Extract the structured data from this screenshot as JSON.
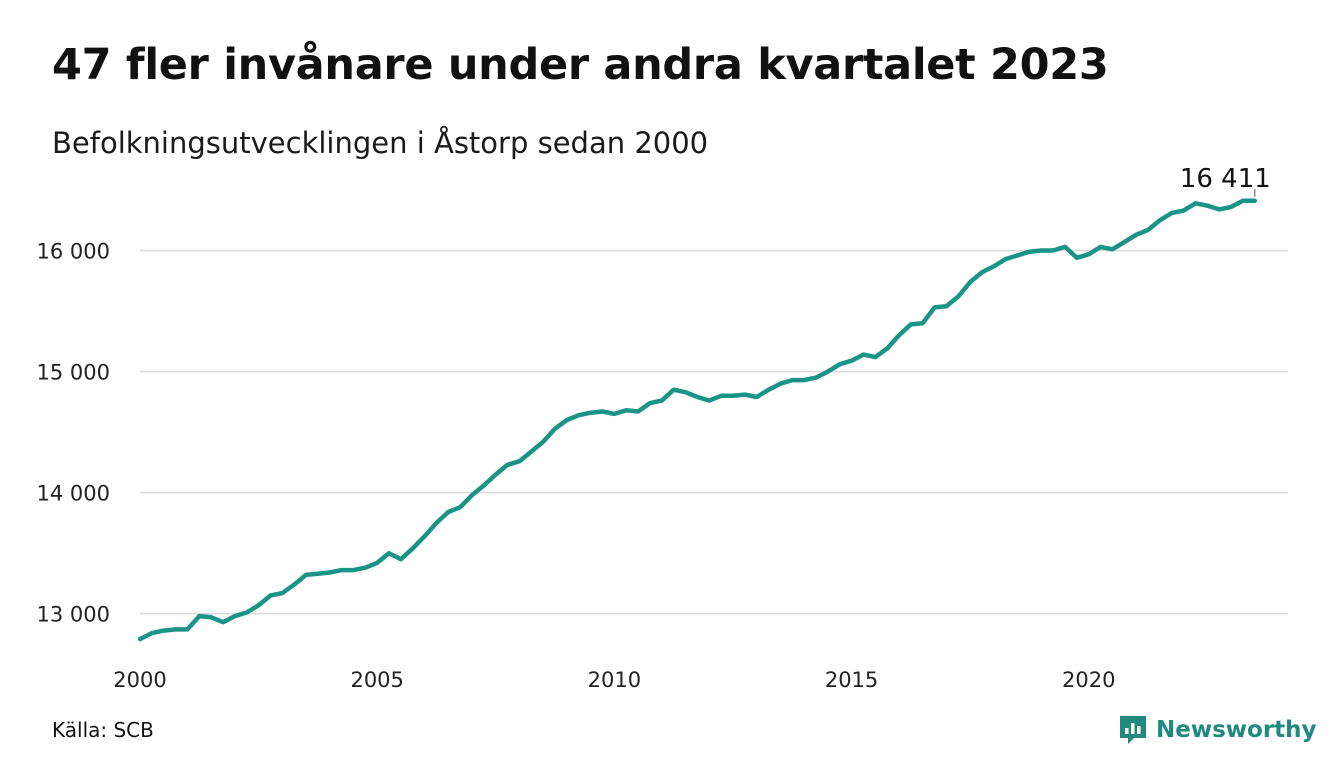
{
  "header": {
    "title": "47 fler invånare under andra kvartalet 2023",
    "subtitle": "Befolkningsutvecklingen i Åstorp sedan 2000"
  },
  "footer": {
    "source": "Källa: SCB",
    "brand": "Newsworthy",
    "brand_icon": "newsworthy-logo-icon",
    "brand_color": "#1f8a7d"
  },
  "chart_data": {
    "type": "line",
    "title": "47 fler invånare under andra kvartalet 2023",
    "subtitle": "Befolkningsutvecklingen i Åstorp sedan 2000",
    "x_unit": "year (quarterly observations)",
    "xlim": [
      2000,
      2024.2
    ],
    "ylim": [
      12700,
      16500
    ],
    "x_ticks": [
      2000,
      2005,
      2010,
      2015,
      2020
    ],
    "x_tick_labels": [
      "2000",
      "2005",
      "2010",
      "2015",
      "2020"
    ],
    "y_ticks": [
      13000,
      14000,
      15000,
      16000
    ],
    "y_tick_labels": [
      "13 000",
      "14 000",
      "15 000",
      "16 000"
    ],
    "grid": "horizontal",
    "line_color": "#1a9486",
    "end_label": "16 411",
    "series": [
      {
        "x": [
          2000.0,
          2000.25,
          2000.5,
          2000.75,
          2001.0,
          2001.25,
          2001.5,
          2001.75,
          2002.0,
          2002.25,
          2002.5,
          2002.75,
          2003.0,
          2003.25,
          2003.5,
          2003.75,
          2004.0,
          2004.25,
          2004.5,
          2004.75,
          2005.0,
          2005.25,
          2005.5,
          2005.75,
          2006.0,
          2006.25,
          2006.5,
          2006.75,
          2007.0,
          2007.25,
          2007.5,
          2007.75,
          2008.0,
          2008.25,
          2008.5,
          2008.75,
          2009.0,
          2009.25,
          2009.5,
          2009.75,
          2010.0,
          2010.25,
          2010.5,
          2010.75,
          2011.0,
          2011.25,
          2011.5,
          2011.75,
          2012.0,
          2012.25,
          2012.5,
          2012.75,
          2013.0,
          2013.25,
          2013.5,
          2013.75,
          2014.0,
          2014.25,
          2014.5,
          2014.75,
          2015.0,
          2015.25,
          2015.5,
          2015.75,
          2016.0,
          2016.25,
          2016.5,
          2016.75,
          2017.0,
          2017.25,
          2017.5,
          2017.75,
          2018.0,
          2018.25,
          2018.5,
          2018.75,
          2019.0,
          2019.25,
          2019.5,
          2019.75,
          2020.0,
          2020.25,
          2020.5,
          2020.75,
          2021.0,
          2021.25,
          2021.5,
          2021.75,
          2022.0,
          2022.25,
          2022.5,
          2022.75,
          2023.0,
          2023.25,
          2023.5
        ],
        "values": [
          12790,
          12840,
          12860,
          12870,
          12870,
          12980,
          12970,
          12930,
          12980,
          13010,
          13070,
          13150,
          13170,
          13240,
          13320,
          13330,
          13340,
          13360,
          13360,
          13380,
          13420,
          13500,
          13450,
          13540,
          13640,
          13750,
          13840,
          13880,
          13980,
          14060,
          14150,
          14230,
          14260,
          14340,
          14420,
          14530,
          14600,
          14640,
          14660,
          14670,
          14650,
          14680,
          14670,
          14740,
          14760,
          14850,
          14830,
          14790,
          14760,
          14800,
          14800,
          14810,
          14790,
          14850,
          14900,
          14930,
          14930,
          14950,
          15000,
          15060,
          15090,
          15140,
          15120,
          15190,
          15300,
          15390,
          15400,
          15530,
          15540,
          15620,
          15740,
          15820,
          15870,
          15930,
          15960,
          15990,
          16000,
          16000,
          16030,
          15940,
          15970,
          16030,
          16010,
          16070,
          16130,
          16170,
          16250,
          16310,
          16330,
          16390,
          16370,
          16340,
          16360,
          16411,
          16411
        ]
      }
    ]
  }
}
